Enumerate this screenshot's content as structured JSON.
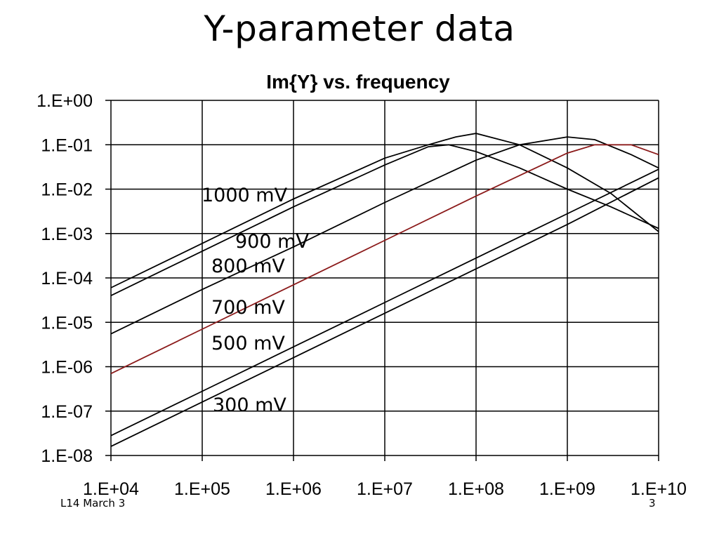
{
  "slide": {
    "title": "Y-parameter data",
    "footer_left": "L14 March 3",
    "footer_right": "3"
  },
  "chart_data": {
    "type": "line",
    "title": "Im{Y} vs. frequency",
    "xlabel": "",
    "ylabel": "",
    "x_scale": "log",
    "y_scale": "log",
    "xlim": [
      10000,
      10000000000
    ],
    "ylim": [
      1e-08,
      1
    ],
    "grid": true,
    "x_tick_values": [
      10000.0,
      100000.0,
      1000000.0,
      10000000.0,
      100000000.0,
      1000000000.0,
      10000000000.0
    ],
    "x_tick_labels": [
      "1.E+04",
      "1.E+05",
      "1.E+06",
      "1.E+07",
      "1.E+08",
      "1.E+09",
      "1.E+10"
    ],
    "y_tick_values": [
      1,
      0.1,
      0.01,
      0.001,
      0.0001,
      1e-05,
      1e-06,
      1e-07,
      1e-08
    ],
    "y_tick_labels": [
      "1.E+00",
      "1.E-01",
      "1.E-02",
      "1.E-03",
      "1.E-04",
      "1.E-05",
      "1.E-06",
      "1.E-07",
      "1.E-08"
    ],
    "colors": {
      "default": "#000000",
      "highlight": "#8b1a1a"
    },
    "series": [
      {
        "name": "1000 mV",
        "color": "#000000",
        "points": [
          [
            10000.0,
            6e-05
          ],
          [
            100000.0,
            0.0006
          ],
          [
            1000000.0,
            0.006
          ],
          [
            10000000.0,
            0.05
          ],
          [
            30000000.0,
            0.1
          ],
          [
            60000000.0,
            0.15
          ],
          [
            100000000.0,
            0.18
          ],
          [
            300000000.0,
            0.1
          ],
          [
            1000000000.0,
            0.03
          ],
          [
            3000000000.0,
            0.008
          ],
          [
            10000000000.0,
            0.0011
          ]
        ]
      },
      {
        "name": "900 mV",
        "color": "#000000",
        "points": [
          [
            10000.0,
            4e-05
          ],
          [
            100000.0,
            0.0004
          ],
          [
            1000000.0,
            0.004
          ],
          [
            10000000.0,
            0.035
          ],
          [
            30000000.0,
            0.09
          ],
          [
            50000000.0,
            0.1
          ],
          [
            100000000.0,
            0.07
          ],
          [
            300000000.0,
            0.03
          ],
          [
            1000000000.0,
            0.01
          ],
          [
            3000000000.0,
            0.004
          ],
          [
            10000000000.0,
            0.0013
          ]
        ]
      },
      {
        "name": "800 mV",
        "color": "#000000",
        "points": [
          [
            10000.0,
            5.5e-06
          ],
          [
            100000.0,
            5.5e-05
          ],
          [
            1000000.0,
            0.0005
          ],
          [
            10000000.0,
            0.005
          ],
          [
            100000000.0,
            0.045
          ],
          [
            300000000.0,
            0.1
          ],
          [
            1000000000.0,
            0.15
          ],
          [
            2000000000.0,
            0.13
          ],
          [
            5000000000.0,
            0.06
          ],
          [
            10000000000.0,
            0.03
          ]
        ]
      },
      {
        "name": "700 mV",
        "color": "#8b1a1a",
        "points": [
          [
            10000.0,
            7e-07
          ],
          [
            100000.0,
            7e-06
          ],
          [
            1000000.0,
            7e-05
          ],
          [
            10000000.0,
            0.0007
          ],
          [
            100000000.0,
            0.007
          ],
          [
            1000000000.0,
            0.065
          ],
          [
            2000000000.0,
            0.1
          ],
          [
            5000000000.0,
            0.1
          ],
          [
            10000000000.0,
            0.06
          ]
        ]
      },
      {
        "name": "500 mV",
        "color": "#000000",
        "points": [
          [
            10000.0,
            2.8e-08
          ],
          [
            100000.0,
            2.8e-07
          ],
          [
            1000000.0,
            2.8e-06
          ],
          [
            10000000.0,
            2.8e-05
          ],
          [
            100000000.0,
            0.00028
          ],
          [
            1000000000.0,
            0.0028
          ],
          [
            10000000000.0,
            0.028
          ]
        ]
      },
      {
        "name": "300 mV",
        "color": "#000000",
        "points": [
          [
            10000.0,
            1.6e-08
          ],
          [
            100000.0,
            1.6e-07
          ],
          [
            1000000.0,
            1.6e-06
          ],
          [
            10000000.0,
            1.6e-05
          ],
          [
            100000000.0,
            0.00016
          ],
          [
            1000000000.0,
            0.0016
          ],
          [
            10000000000.0,
            0.018
          ]
        ]
      }
    ],
    "series_labels": [
      {
        "text": "1000 mV"
      },
      {
        "text": "900 mV"
      },
      {
        "text": "800 mV"
      },
      {
        "text": "700 mV"
      },
      {
        "text": "500 mV"
      },
      {
        "text": "300 mV"
      }
    ]
  }
}
